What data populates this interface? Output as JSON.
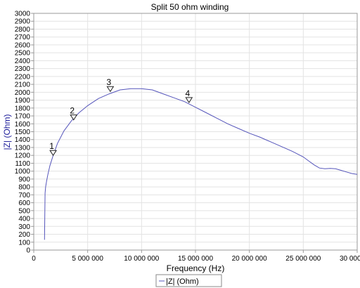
{
  "chart_data": {
    "type": "line",
    "title": "Split 50 ohm winding",
    "xlabel": "Frequency (Hz)",
    "ylabel": "|Z| (Ohm)",
    "xlim": [
      0,
      30000000
    ],
    "ylim": [
      0,
      3000
    ],
    "x_ticks": [
      0,
      5000000,
      10000000,
      15000000,
      20000000,
      25000000,
      30000000
    ],
    "x_tick_labels": [
      "0",
      "5 000 000",
      "10 000 000",
      "15 000 000",
      "20 000 000",
      "25 000 000",
      "30 000 000"
    ],
    "y_ticks": [
      0,
      100,
      200,
      300,
      400,
      500,
      600,
      700,
      800,
      900,
      1000,
      1100,
      1200,
      1300,
      1400,
      1500,
      1600,
      1700,
      1800,
      1900,
      2000,
      2100,
      2200,
      2300,
      2400,
      2500,
      2600,
      2700,
      2800,
      2900,
      3000
    ],
    "y_tick_labels": [
      "0",
      "100",
      "200",
      "300",
      "400",
      "500",
      "600",
      "700",
      "800",
      "900",
      "1000",
      "1100",
      "1200",
      "1300",
      "1400",
      "1500",
      "1600",
      "1700",
      "1800",
      "1900",
      "2000",
      "2100",
      "2200",
      "2300",
      "2400",
      "2500",
      "2600",
      "2700",
      "2800",
      "2900",
      "3000"
    ],
    "grid": true,
    "legend_position": "bottom-center",
    "series": [
      {
        "name": "|Z| (Ohm)",
        "color": "#5555bb",
        "x": [
          1000000,
          1050000,
          1100000,
          1200000,
          1300000,
          1500000,
          1800000,
          2200000,
          2800000,
          3500000,
          4200000,
          5000000,
          6000000,
          7000000,
          8000000,
          9000000,
          10000000,
          11000000,
          12000000,
          13000000,
          14000000,
          15000000,
          16000000,
          17000000,
          18000000,
          19000000,
          20000000,
          21000000,
          22000000,
          23000000,
          24000000,
          25000000,
          25500000,
          26000000,
          26500000,
          27000000,
          27500000,
          28000000,
          28500000,
          29000000,
          29500000,
          30000000
        ],
        "y": [
          130,
          720,
          800,
          880,
          950,
          1070,
          1200,
          1350,
          1510,
          1640,
          1740,
          1830,
          1920,
          1980,
          2030,
          2045,
          2045,
          2030,
          1980,
          1930,
          1880,
          1810,
          1740,
          1670,
          1600,
          1540,
          1480,
          1430,
          1370,
          1310,
          1250,
          1180,
          1130,
          1080,
          1040,
          1030,
          1035,
          1030,
          1010,
          990,
          970,
          960
        ]
      }
    ],
    "markers": [
      {
        "label": "1",
        "x": 1800000,
        "y": 1200
      },
      {
        "label": "2",
        "x": 3700000,
        "y": 1650
      },
      {
        "label": "3",
        "x": 7100000,
        "y": 2010
      },
      {
        "label": "4",
        "x": 14400000,
        "y": 1870
      }
    ]
  },
  "colors": {
    "series": "#5555bb",
    "ylabel": "#1a1a99",
    "grid": "#e3e3e3",
    "axis": "#999999"
  }
}
